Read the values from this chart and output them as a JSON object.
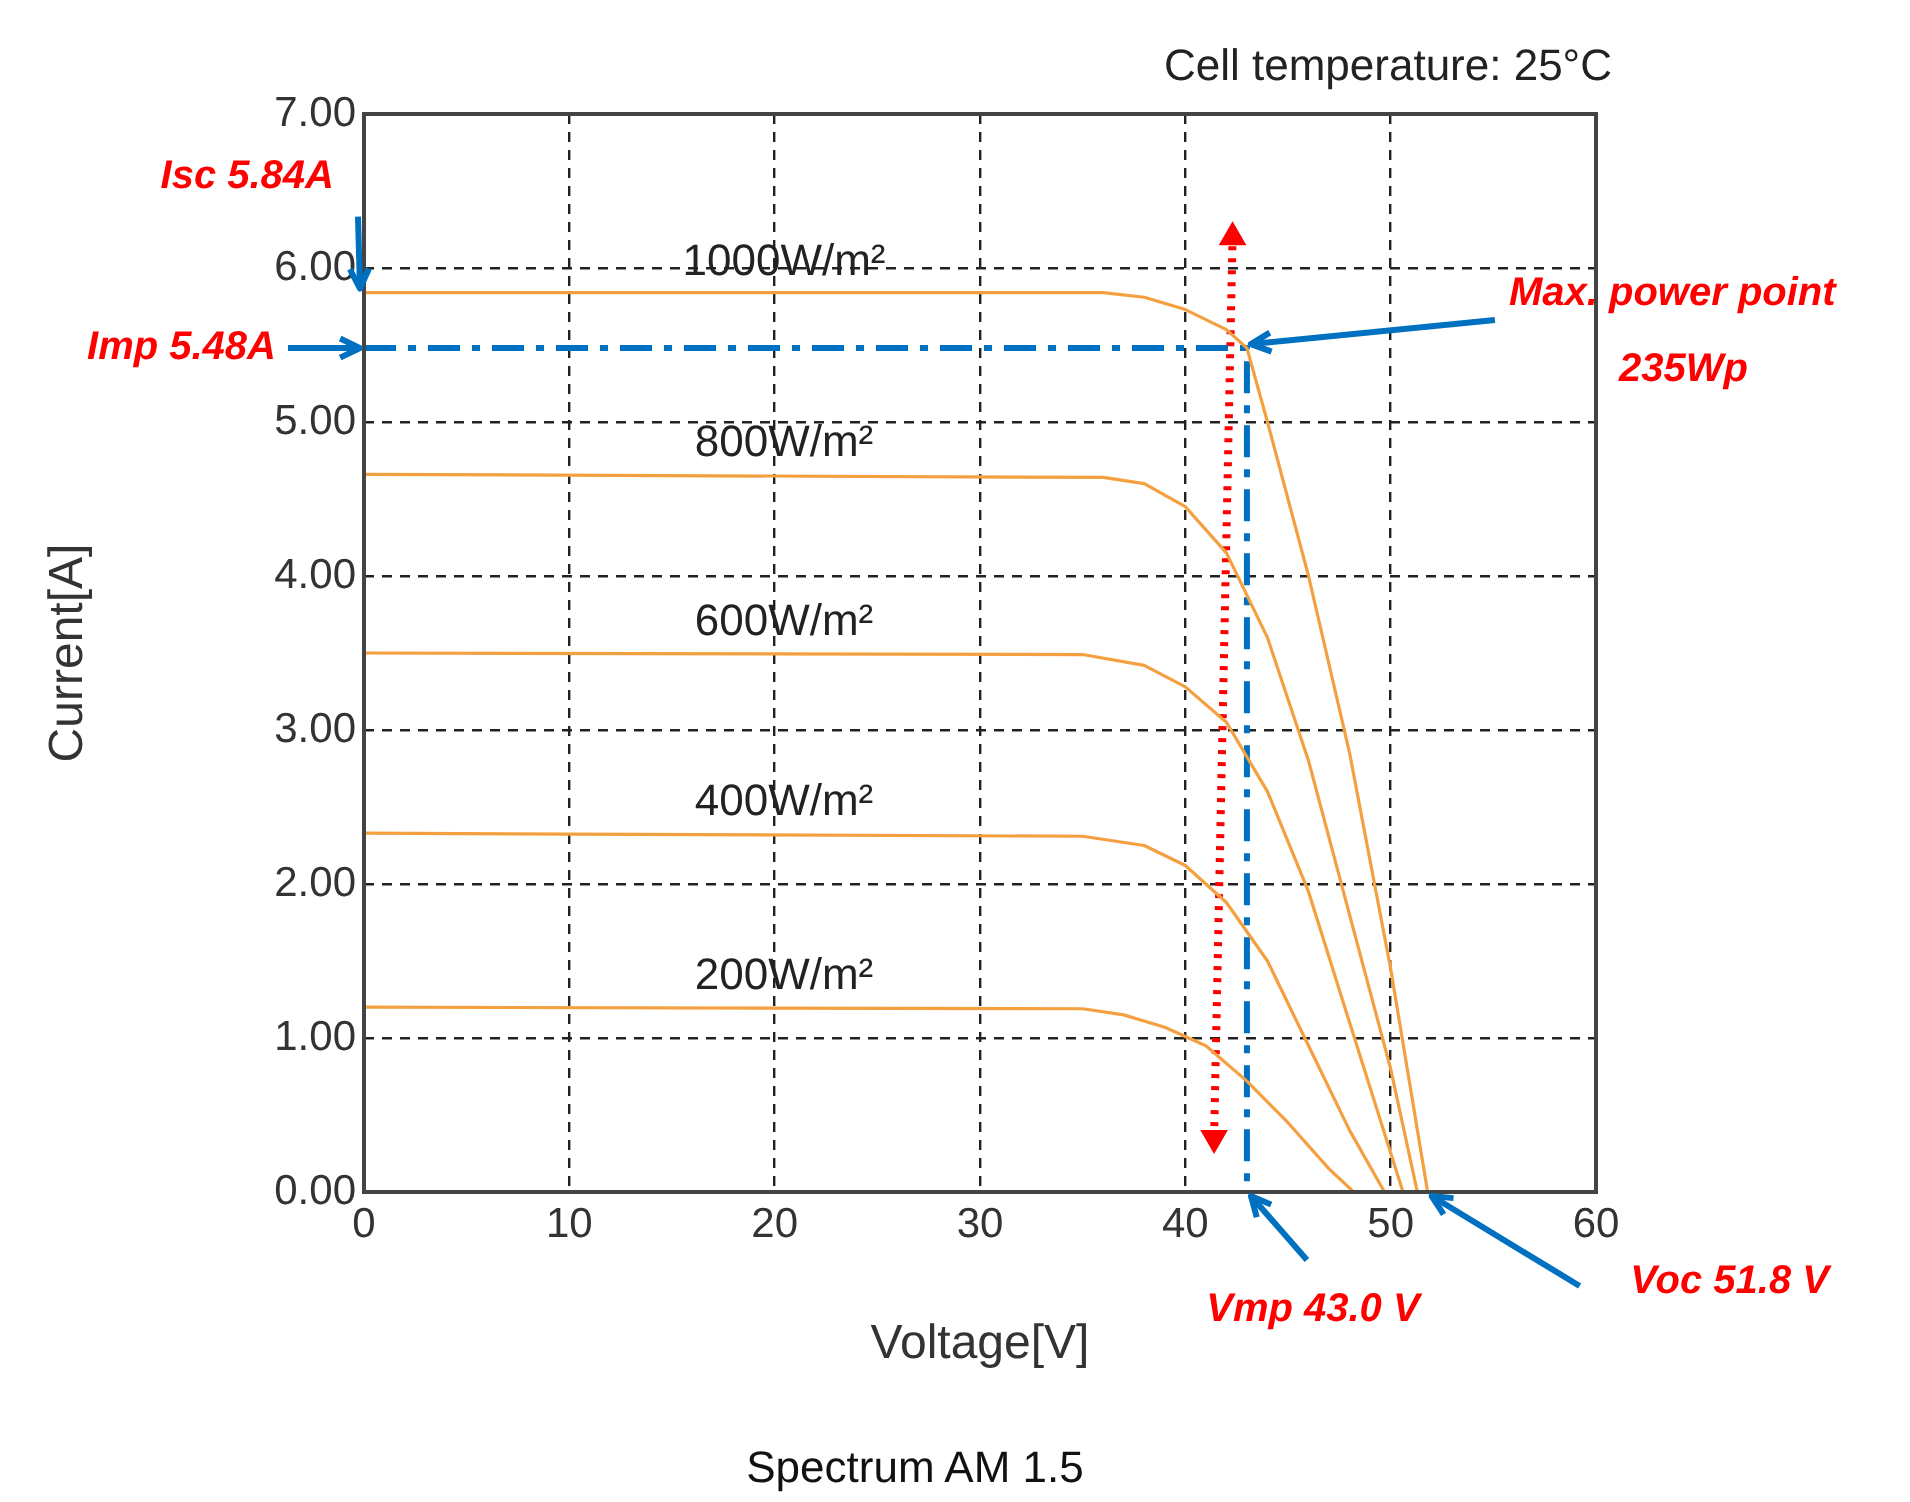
{
  "chart_data": {
    "type": "line",
    "title": "Cell temperature: 25°C",
    "xlabel": "Voltage[V]",
    "ylabel": "Current[A]",
    "xlim": [
      0,
      60
    ],
    "xticks": [
      0,
      10,
      20,
      30,
      40,
      50,
      60
    ],
    "ylim": [
      0,
      7
    ],
    "yticks": [
      {
        "value": 0,
        "label": "0.00"
      },
      {
        "value": 1,
        "label": "1.00"
      },
      {
        "value": 2,
        "label": "2.00"
      },
      {
        "value": 3,
        "label": "3.00"
      },
      {
        "value": 4,
        "label": "4.00"
      },
      {
        "value": 5,
        "label": "5.00"
      },
      {
        "value": 6,
        "label": "6.00"
      },
      {
        "value": 7,
        "label": "7.00"
      }
    ],
    "grid": true,
    "legend": false,
    "marker": "none",
    "series": [
      {
        "name": "1000W/m²",
        "color": "#f4a040",
        "x": [
          0,
          36,
          38,
          40,
          42,
          43,
          44,
          46,
          48,
          50,
          51.8
        ],
        "values": [
          5.84,
          5.84,
          5.81,
          5.73,
          5.6,
          5.48,
          5.0,
          4.0,
          2.85,
          1.45,
          0
        ]
      },
      {
        "name": "800W/m²",
        "color": "#f4a040",
        "x": [
          0,
          36,
          38,
          40,
          42,
          44,
          46,
          48,
          50,
          51.3
        ],
        "values": [
          4.66,
          4.64,
          4.6,
          4.45,
          4.15,
          3.6,
          2.8,
          1.8,
          0.8,
          0
        ]
      },
      {
        "name": "600W/m²",
        "color": "#f4a040",
        "x": [
          0,
          35,
          38,
          40,
          42,
          44,
          46,
          48,
          50.6
        ],
        "values": [
          3.5,
          3.49,
          3.42,
          3.28,
          3.05,
          2.6,
          1.95,
          1.1,
          0
        ]
      },
      {
        "name": "400W/m²",
        "color": "#f4a040",
        "x": [
          0,
          35,
          38,
          40,
          42,
          44,
          46,
          48,
          49.7
        ],
        "values": [
          2.33,
          2.31,
          2.25,
          2.12,
          1.88,
          1.5,
          0.95,
          0.4,
          0
        ]
      },
      {
        "name": "200W/m²",
        "color": "#f4a040",
        "x": [
          0,
          35,
          37,
          39,
          41,
          43,
          45,
          47,
          48.2
        ],
        "values": [
          1.2,
          1.19,
          1.15,
          1.07,
          0.95,
          0.72,
          0.45,
          0.15,
          0
        ]
      },
      {
        "type": "line",
        "color": "#0070c0",
        "line_style": "dashed",
        "x": [
          0,
          43.0,
          43.0
        ],
        "values": [
          5.48,
          5.48,
          0
        ]
      },
      {
        "type": "line",
        "color": "#ff0000",
        "line_style": "dotted",
        "marker": "triangle",
        "x": [
          41.4,
          42.3
        ],
        "values": [
          0.35,
          6.2
        ]
      }
    ],
    "annotations": [
      {
        "text": "Isc 5.84A",
        "x": 0,
        "y": 5.84
      },
      {
        "text": "Imp 5.48A",
        "x": 0,
        "y": 5.48
      },
      {
        "text": "Max. power point 235Wp",
        "x": 43.0,
        "y": 5.48
      },
      {
        "text": "Vmp 43.0 V",
        "x": 43.0,
        "y": 0
      },
      {
        "text": "Voc 51.8 V",
        "x": 51.8,
        "y": 0
      },
      "Spectrum AM 1.5"
    ]
  }
}
